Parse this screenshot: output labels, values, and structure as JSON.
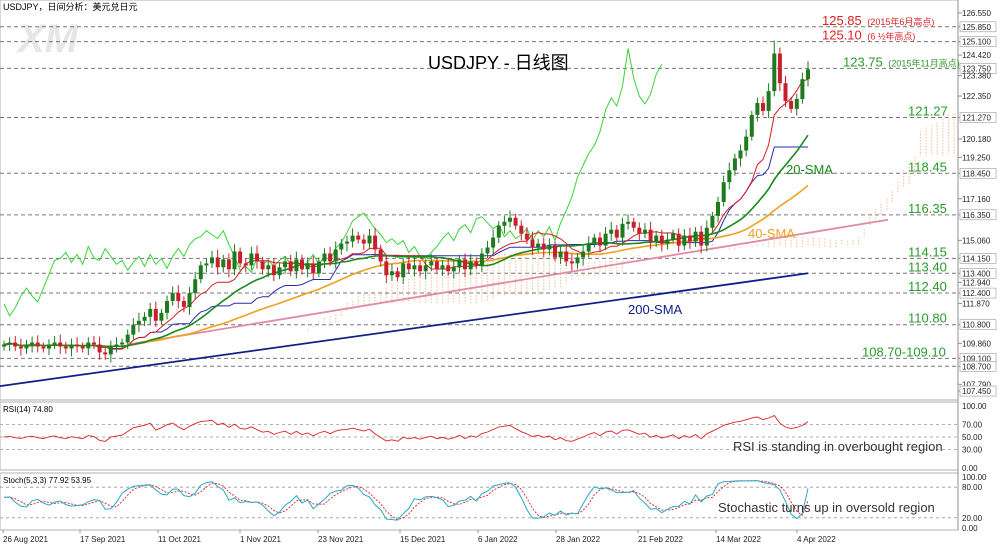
{
  "header": {
    "symbol_line": "USDJPY，日间分析：美元兑日元"
  },
  "watermark": "XM",
  "main_title": "USDJPY - 日线图",
  "colors": {
    "bull": "#1f7a1f",
    "bear": "#c8202a",
    "sma20": "#1a8a1a",
    "sma40": "#f0a020",
    "sma200": "#10208a",
    "trendline": "#e08aa8",
    "tenkan": "#d81b1b",
    "kijun": "#2a2ab0",
    "chikou": "#3ad43a",
    "cloud": "#f2b98a",
    "rsi": "#e02020",
    "stoch_k": "#28a8c8",
    "stoch_d": "#e02020",
    "level_red": "#e02020",
    "level_green": "#2a9a2a",
    "label_blue": "#10208a"
  },
  "chart_data": [
    {
      "type": "candlestick",
      "title": "USDJPY - 日线图",
      "y_axis": {
        "range": [
          107.2,
          127.0
        ],
        "tick_labels": [
          "126.550",
          "125.850",
          "125.100",
          "124.420",
          "123.750",
          "123.380",
          "122.350",
          "121.270",
          "120.180",
          "119.250",
          "118.450",
          "117.160",
          "116.350",
          "115.060",
          "114.150",
          "113.400",
          "112.940",
          "112.400",
          "111.870",
          "110.800",
          "109.860",
          "109.100",
          "108.700",
          "107.790",
          "107.450"
        ]
      },
      "x_axis": {
        "labels": [
          "26 Aug 2021",
          "17 Sep 2021",
          "11 Oct 2021",
          "1 Nov 2021",
          "23 Nov 2021",
          "15 Dec 2021",
          "6 Jan 2022",
          "28 Jan 2022",
          "21 Feb 2022",
          "14 Mar 2022",
          "4 Apr 2022"
        ]
      },
      "closes": [
        109.8,
        109.9,
        109.7,
        109.6,
        109.8,
        109.9,
        109.7,
        109.6,
        109.8,
        109.9,
        109.7,
        109.6,
        109.8,
        109.7,
        109.6,
        109.9,
        109.8,
        109.4,
        109.3,
        109.7,
        109.8,
        109.9,
        110.3,
        110.8,
        111.0,
        111.2,
        111.6,
        111.0,
        111.4,
        112.0,
        112.4,
        112.0,
        111.7,
        112.4,
        113.1,
        113.8,
        113.9,
        114.2,
        113.7,
        114.1,
        113.6,
        114.5,
        113.9,
        113.8,
        114.4,
        114.0,
        113.6,
        113.8,
        113.3,
        113.7,
        114.0,
        113.5,
        114.1,
        113.6,
        113.9,
        113.4,
        114.0,
        114.4,
        114.0,
        114.6,
        114.9,
        115.0,
        115.3,
        115.1,
        114.9,
        115.3,
        114.6,
        114.0,
        113.3,
        113.5,
        113.2,
        113.9,
        113.6,
        113.8,
        113.5,
        113.8,
        114.0,
        113.6,
        113.8,
        113.5,
        113.7,
        114.1,
        113.6,
        114.0,
        113.8,
        114.4,
        114.7,
        115.2,
        115.8,
        116.0,
        116.2,
        115.8,
        115.4,
        115.1,
        114.7,
        114.9,
        114.6,
        114.8,
        114.2,
        114.5,
        114.0,
        113.9,
        114.2,
        114.5,
        114.9,
        115.2,
        114.8,
        115.4,
        115.6,
        115.2,
        115.9,
        116.0,
        115.7,
        115.4,
        115.6,
        115.0,
        115.3,
        114.9,
        115.1,
        115.4,
        114.8,
        115.3,
        115.0,
        115.5,
        114.8,
        115.7,
        116.3,
        117.0,
        118.0,
        118.6,
        119.2,
        119.6,
        120.3,
        121.4,
        122.0,
        121.6,
        122.6,
        124.5,
        123.0,
        122.1,
        121.7,
        122.2,
        123.2,
        123.7
      ],
      "series": [
        {
          "name": "20-SMA"
        },
        {
          "name": "40-SMA"
        },
        {
          "name": "200-SMA",
          "start": 107.7,
          "end": 113.4
        }
      ],
      "levels": [
        {
          "label": "125.85",
          "note": "(2015年6月高点)",
          "value": 125.85,
          "color": "red"
        },
        {
          "label": "125.10",
          "note": "(6 ½年高点)",
          "value": 125.1,
          "color": "red"
        },
        {
          "label": "123.75",
          "note": "(2015年11月高点)",
          "value": 123.75,
          "color": "green"
        },
        {
          "label": "121.27",
          "note": "",
          "value": 121.27,
          "color": "green"
        },
        {
          "label": "118.45",
          "note": "",
          "value": 118.45,
          "color": "green"
        },
        {
          "label": "116.35",
          "note": "",
          "value": 116.35,
          "color": "green"
        },
        {
          "label": "114.15",
          "note": "",
          "value": 114.15,
          "color": "green"
        },
        {
          "label": "113.40",
          "note": "",
          "value": 113.4,
          "color": "green"
        },
        {
          "label": "112.40",
          "note": "",
          "value": 112.4,
          "color": "green"
        },
        {
          "label": "110.80",
          "note": "",
          "value": 110.8,
          "color": "green"
        },
        {
          "label": "108.70-109.10",
          "note": "",
          "value": 109.1,
          "value2": 108.7,
          "color": "green"
        }
      ],
      "grid": false
    },
    {
      "type": "line",
      "title": "RSI(14) 74.80",
      "y_axis": {
        "range": [
          0,
          100
        ],
        "tick_labels": [
          "100.00",
          "70.00",
          "50.00",
          "30.00",
          "0.00"
        ]
      },
      "annotation": "RSI is standing in overbought region",
      "last_value": 74.8
    },
    {
      "type": "line",
      "title": "Stoch(5,3,3) 77.92 53.95",
      "y_axis": {
        "range": [
          0,
          100
        ],
        "tick_labels": [
          "100.00",
          "80.00",
          "20.00",
          "0.00"
        ]
      },
      "annotation": "Stochastic turns up in oversold region",
      "series": [
        {
          "last_value": 77.92
        },
        {
          "last_value": 53.95
        }
      ]
    }
  ]
}
